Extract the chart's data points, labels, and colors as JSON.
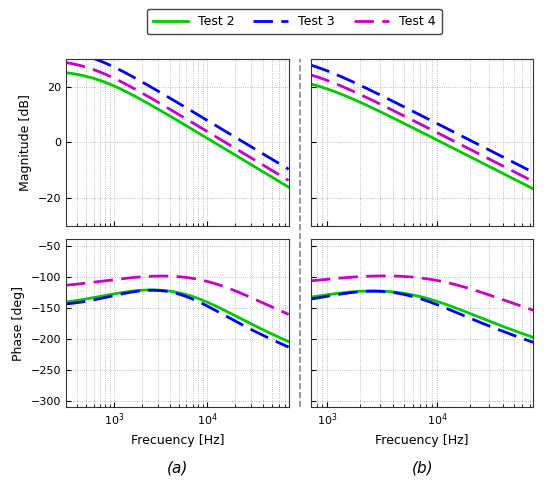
{
  "legend_labels": [
    "Test 2",
    "Test 3",
    "Test 4"
  ],
  "legend_colors": [
    "#00cc00",
    "#0000ff",
    "#cc00cc"
  ],
  "subplot_a_mag_ylim": [
    -30,
    30
  ],
  "subplot_a_phase_ylim": [
    -310,
    -40
  ],
  "subplot_b_mag_ylim": [
    -30,
    30
  ],
  "subplot_b_phase_ylim": [
    -310,
    -40
  ],
  "freq_a_xlim_log": [
    2.48,
    4.88
  ],
  "freq_b_xlim_log": [
    2.85,
    4.88
  ],
  "ylabel_mag": "Magnitude [dB]",
  "ylabel_phase": "Phase [deg]",
  "xlabel": "Frecuency [Hz]",
  "label_a": "(a)",
  "label_b": "(b)",
  "bg_color": "#ffffff",
  "grid_color": "#aaaaaa",
  "dashed_line_color": "#888888"
}
